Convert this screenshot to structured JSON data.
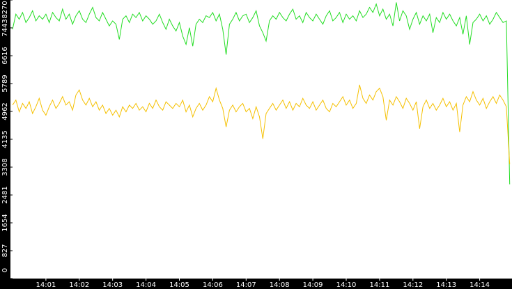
{
  "chart_data": {
    "type": "line",
    "categories": [
      null,
      null,
      null,
      null,
      null,
      null,
      null,
      null,
      null,
      null,
      "14:01",
      null,
      null,
      null,
      null,
      null,
      null,
      null,
      null,
      null,
      "14:02",
      null,
      null,
      null,
      null,
      null,
      null,
      null,
      null,
      null,
      "14:03",
      null,
      null,
      null,
      null,
      null,
      null,
      null,
      null,
      null,
      "14:04",
      null,
      null,
      null,
      null,
      null,
      null,
      null,
      null,
      null,
      "14:05",
      null,
      null,
      null,
      null,
      null,
      null,
      null,
      null,
      null,
      "14:06",
      null,
      null,
      null,
      null,
      null,
      null,
      null,
      null,
      null,
      "14:07",
      null,
      null,
      null,
      null,
      null,
      null,
      null,
      null,
      null,
      "14:08",
      null,
      null,
      null,
      null,
      null,
      null,
      null,
      null,
      null,
      "14:09",
      null,
      null,
      null,
      null,
      null,
      null,
      null,
      null,
      null,
      "14:10",
      null,
      null,
      null,
      null,
      null,
      null,
      null,
      null,
      null,
      "14:11",
      null,
      null,
      null,
      null,
      null,
      null,
      null,
      null,
      null,
      "14:12",
      null,
      null,
      null,
      null,
      null,
      null,
      null,
      null,
      null,
      "14:13",
      null,
      null,
      null,
      null,
      null,
      null,
      null,
      null,
      null,
      "14:14",
      null,
      null,
      null,
      null,
      null,
      null,
      null,
      null,
      null
    ],
    "series": [
      {
        "color": "#22dd22",
        "values": [
          7400,
          7850,
          7700,
          7900,
          7600,
          7750,
          7950,
          7650,
          7800,
          7700,
          7850,
          7600,
          7900,
          7750,
          7650,
          8000,
          7700,
          7850,
          7550,
          7800,
          7950,
          7700,
          7600,
          7850,
          8050,
          7750,
          7650,
          7900,
          7700,
          7500,
          7650,
          7550,
          7100,
          7700,
          7800,
          7600,
          7850,
          7750,
          7900,
          7650,
          7800,
          7700,
          7550,
          7650,
          7850,
          7600,
          7400,
          7700,
          7500,
          7350,
          7600,
          7200,
          6950,
          7450,
          6900,
          7550,
          7700,
          7600,
          7800,
          7750,
          7900,
          7650,
          7850,
          7400,
          6650,
          7550,
          7700,
          7900,
          7650,
          7800,
          7850,
          7600,
          7750,
          7950,
          7500,
          7300,
          7050,
          7650,
          7800,
          7700,
          7900,
          7750,
          7650,
          7850,
          8000,
          7700,
          7800,
          7600,
          7900,
          7750,
          7650,
          7850,
          7700,
          7550,
          7800,
          7950,
          7650,
          7750,
          7900,
          7600,
          7850,
          7700,
          7800,
          7650,
          7950,
          7750,
          7850,
          8050,
          7900,
          8150,
          7800,
          8000,
          7700,
          7850,
          7500,
          8200,
          7650,
          7950,
          7800,
          7400,
          7700,
          7900,
          7550,
          7800,
          7650,
          7850,
          7300,
          7750,
          7600,
          7900,
          7700,
          7850,
          7650,
          7500,
          7750,
          7250,
          7800,
          6950,
          7600,
          7700,
          7850,
          7650,
          7800,
          7550,
          7700,
          7900,
          7750,
          7600,
          7650,
          2800
        ]
      },
      {
        "color": "#f5c000",
        "values": [
          5150,
          5300,
          4950,
          5200,
          5050,
          5250,
          4900,
          5100,
          5350,
          5000,
          4850,
          5100,
          5300,
          5050,
          5200,
          5400,
          5150,
          5250,
          5000,
          5450,
          5600,
          5300,
          5150,
          5350,
          5100,
          5250,
          5000,
          5150,
          4900,
          5050,
          4850,
          5000,
          4800,
          5100,
          4950,
          5150,
          5050,
          5200,
          5000,
          5100,
          4950,
          5200,
          5050,
          5300,
          5100,
          5000,
          5250,
          5150,
          5050,
          5200,
          5100,
          5300,
          4950,
          5150,
          4800,
          5050,
          5200,
          5000,
          5150,
          5400,
          5250,
          5650,
          5300,
          5050,
          4500,
          5000,
          5150,
          4950,
          5100,
          5200,
          4950,
          5050,
          4750,
          5100,
          4800,
          4150,
          4900,
          5050,
          5200,
          5000,
          5150,
          5300,
          5050,
          5250,
          5000,
          5200,
          5100,
          5350,
          5150,
          5050,
          5250,
          5000,
          5150,
          5300,
          5050,
          4950,
          5200,
          5100,
          5250,
          5400,
          5150,
          5300,
          5050,
          5200,
          5750,
          5350,
          5200,
          5450,
          5300,
          5550,
          5650,
          5400,
          4700,
          5300,
          5150,
          5400,
          5250,
          5050,
          5350,
          5200,
          5000,
          5250,
          4450,
          5100,
          5300,
          5050,
          5200,
          5000,
          5150,
          5350,
          5100,
          5250,
          5000,
          5200,
          4350,
          5150,
          5400,
          5250,
          5550,
          5300,
          5150,
          5350,
          5050,
          5250,
          5400,
          5200,
          5450,
          5300,
          5100,
          3400
        ]
      }
    ],
    "ylim": [
      0,
      8270
    ],
    "yticks": [
      0,
      827,
      1654,
      2481,
      3308,
      4135,
      4962,
      5789,
      6616,
      7443,
      8270
    ]
  }
}
